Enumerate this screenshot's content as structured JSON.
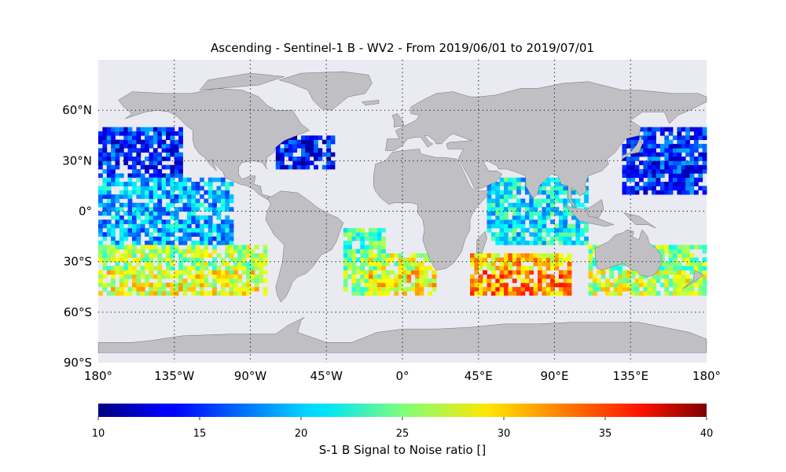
{
  "title": "Ascending - Sentinel-1 B - WV2 - From 2019/06/01 to 2019/07/01",
  "map": {
    "projection": "equirectangular",
    "lon_range": [
      -180,
      180
    ],
    "lat_range": [
      -90,
      90
    ],
    "ocean_color": "#eaeaf2",
    "land_color": "#c0c0c4",
    "grid_style": "dotted",
    "lat_ticks": [
      {
        "value": 60,
        "label": "60°N"
      },
      {
        "value": 30,
        "label": "30°N"
      },
      {
        "value": 0,
        "label": "0°"
      },
      {
        "value": -30,
        "label": "30°S"
      },
      {
        "value": -60,
        "label": "60°S"
      },
      {
        "value": -90,
        "label": "90°S"
      }
    ],
    "lon_ticks": [
      {
        "value": -180,
        "label": "180°"
      },
      {
        "value": -135,
        "label": "135°W"
      },
      {
        "value": -90,
        "label": "90°W"
      },
      {
        "value": -45,
        "label": "45°W"
      },
      {
        "value": 0,
        "label": "0°"
      },
      {
        "value": 45,
        "label": "45°E"
      },
      {
        "value": 90,
        "label": "90°E"
      },
      {
        "value": 135,
        "label": "135°E"
      },
      {
        "value": 180,
        "label": "180°"
      }
    ]
  },
  "colorbar": {
    "label": "S-1 B Signal to Noise ratio []",
    "colormap": "jet",
    "range": [
      10,
      40
    ],
    "ticks": [
      10,
      15,
      20,
      25,
      30,
      35,
      40
    ]
  },
  "chart_data": {
    "type": "heatmap",
    "description_variable": "S-1 B Signal to Noise ratio",
    "value_range": [
      10,
      40
    ],
    "regions": [
      {
        "lon": [
          -180,
          -130
        ],
        "lat": [
          20,
          50
        ],
        "snr_mean": 15
      },
      {
        "lon": [
          -180,
          -100
        ],
        "lat": [
          -20,
          20
        ],
        "snr_mean": 19
      },
      {
        "lon": [
          -180,
          -80
        ],
        "lat": [
          -50,
          -20
        ],
        "snr_mean": 26
      },
      {
        "lon": [
          -75,
          -40
        ],
        "lat": [
          25,
          45
        ],
        "snr_mean": 14
      },
      {
        "lon": [
          -35,
          -10
        ],
        "lat": [
          -50,
          -10
        ],
        "snr_mean": 24
      },
      {
        "lon": [
          -20,
          20
        ],
        "lat": [
          -50,
          -25
        ],
        "snr_mean": 27
      },
      {
        "lon": [
          40,
          100
        ],
        "lat": [
          -50,
          -25
        ],
        "snr_mean": 30
      },
      {
        "lon": [
          50,
          110
        ],
        "lat": [
          -20,
          20
        ],
        "snr_mean": 21
      },
      {
        "lon": [
          130,
          180
        ],
        "lat": [
          10,
          50
        ],
        "snr_mean": 15
      },
      {
        "lon": [
          110,
          180
        ],
        "lat": [
          -50,
          -20
        ],
        "snr_mean": 25
      }
    ]
  }
}
